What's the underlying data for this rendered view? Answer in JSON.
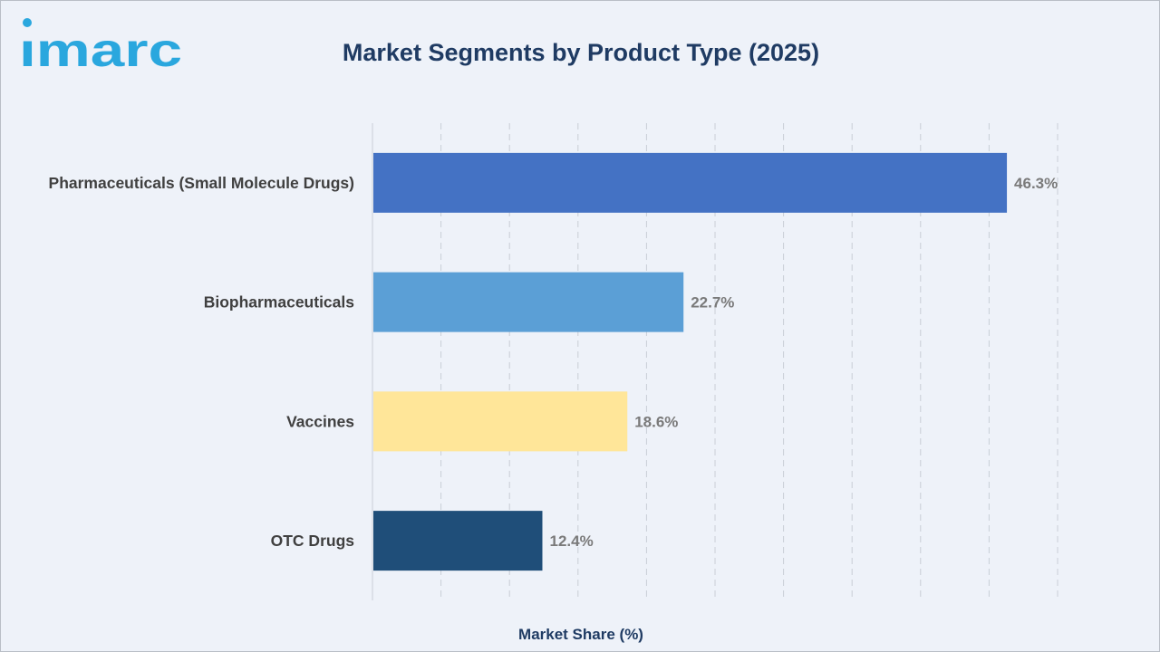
{
  "brand": {
    "logo_text": "imarc",
    "logo_color": "#2aa7de"
  },
  "chart_data": {
    "type": "bar",
    "orientation": "horizontal",
    "title": "Market Segments by Product Type (2025)",
    "xlabel": "Market Share (%)",
    "ylabel": "",
    "categories": [
      "Pharmaceuticals (Small Molecule Drugs)",
      "Biopharmaceuticals",
      "Vaccines",
      "OTC Drugs"
    ],
    "values": [
      46.3,
      22.7,
      18.6,
      12.4
    ],
    "value_labels": [
      "46.3%",
      "22.7%",
      "18.6%",
      "12.4%"
    ],
    "colors": [
      "#4472c4",
      "#5b9fd6",
      "#ffe699",
      "#1f4e79"
    ],
    "xlim": [
      0,
      50
    ],
    "grid": true,
    "gridline_step": 5,
    "legend": "none"
  }
}
